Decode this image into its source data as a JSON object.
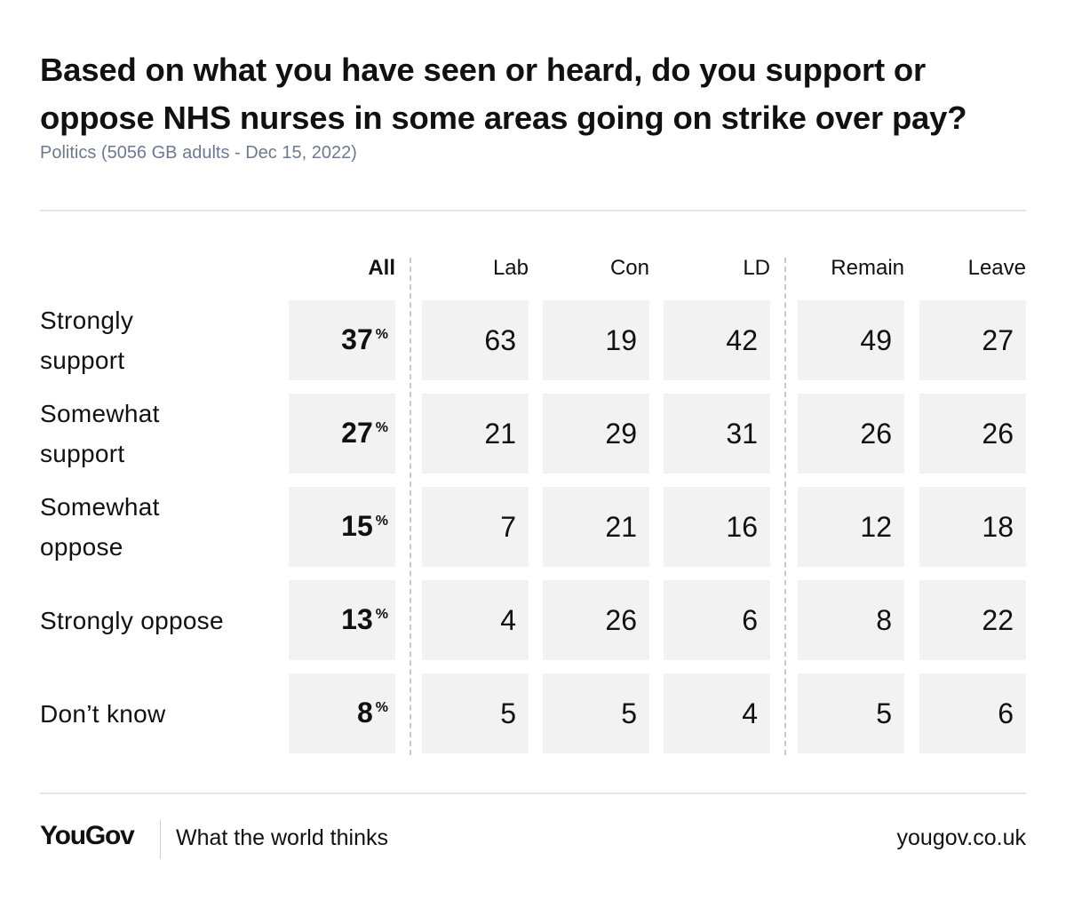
{
  "title": "Based on what you have seen or heard, do you support or oppose NHS nurses in some areas going on strike over pay?",
  "subtitle": "Politics (5056 GB adults - Dec 15, 2022)",
  "footer": {
    "logo": "YouGov",
    "tagline": "What the world thinks",
    "site": "yougov.co.uk"
  },
  "chart_data": {
    "type": "table",
    "title": "Based on what you have seen or heard, do you support or oppose NHS nurses in some areas going on strike over pay?",
    "columns": [
      "All",
      "Lab",
      "Con",
      "LD",
      "Remain",
      "Leave"
    ],
    "rows": [
      "Strongly support",
      "Somewhat support",
      "Somewhat oppose",
      "Strongly oppose",
      "Don’t know"
    ],
    "row_labels_display": [
      [
        "Strongly",
        "support"
      ],
      [
        "Somewhat",
        "support"
      ],
      [
        "Somewhat",
        "oppose"
      ],
      [
        "Strongly oppose"
      ],
      [
        "Don’t know"
      ]
    ],
    "unit_all": "%",
    "values": [
      [
        37,
        63,
        19,
        42,
        49,
        27
      ],
      [
        27,
        21,
        29,
        31,
        26,
        26
      ],
      [
        15,
        7,
        21,
        16,
        12,
        18
      ],
      [
        13,
        4,
        26,
        6,
        8,
        22
      ],
      [
        8,
        5,
        5,
        4,
        5,
        6
      ]
    ]
  }
}
